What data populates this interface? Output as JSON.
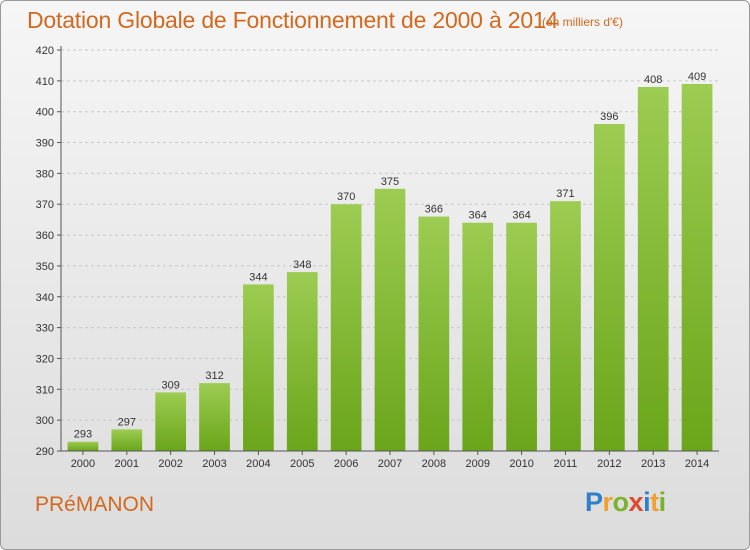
{
  "header": {
    "title": "Dotation Globale de Fonctionnement de 2000 à 2014",
    "subtitle": "(en milliers d'€)"
  },
  "footer": {
    "commune": "PRéMANON",
    "logo_text": "Proxiti",
    "logo_letters": [
      {
        "char": "P",
        "color": "#2f80c8"
      },
      {
        "char": "r",
        "color": "#f0a030"
      },
      {
        "char": "o",
        "color": "#7ab32e"
      },
      {
        "char": "x",
        "color": "#e04830"
      },
      {
        "char": "i",
        "color": "#2f80c8"
      },
      {
        "char": "t",
        "color": "#f0a030"
      },
      {
        "char": "i",
        "color": "#7ab32e"
      }
    ]
  },
  "colors": {
    "bar_top": "#9ccc52",
    "bar_bottom": "#6aa51a",
    "grid": "#c8c8c8",
    "axis": "#555555",
    "text": "#333333",
    "accent": "#d2691e"
  },
  "chart_data": {
    "type": "bar",
    "categories": [
      "2000",
      "2001",
      "2002",
      "2003",
      "2004",
      "2005",
      "2006",
      "2007",
      "2008",
      "2009",
      "2010",
      "2011",
      "2012",
      "2013",
      "2014"
    ],
    "values": [
      293,
      297,
      309,
      312,
      344,
      348,
      370,
      375,
      366,
      364,
      364,
      371,
      396,
      408,
      409
    ],
    "title": "Dotation Globale de Fonctionnement de 2000 à 2014",
    "subtitle": "(en milliers d'€)",
    "xlabel": "",
    "ylabel": "",
    "ylim": [
      290,
      420
    ],
    "yticks": [
      290,
      300,
      310,
      320,
      330,
      340,
      350,
      360,
      370,
      380,
      390,
      400,
      410,
      420
    ],
    "grid": true,
    "data_labels": true
  }
}
